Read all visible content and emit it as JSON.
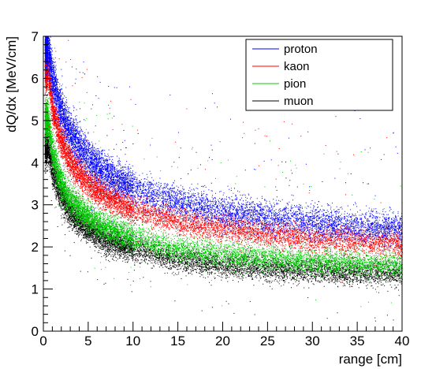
{
  "chart_data": {
    "type": "scatter",
    "title": "",
    "xlabel": "range [cm]",
    "ylabel": "dQ/dx [MeV/cm]",
    "xlim": [
      0,
      40
    ],
    "ylim": [
      0,
      7
    ],
    "x_ticks": [
      0,
      5,
      10,
      15,
      20,
      25,
      30,
      35,
      40
    ],
    "y_ticks": [
      0,
      1,
      2,
      3,
      4,
      5,
      6,
      7
    ],
    "grid": false,
    "legend_position": "top-right",
    "series": [
      {
        "name": "proton",
        "color": "#0000ff",
        "band_center": {
          "x": [
            0.5,
            1,
            2,
            3,
            5,
            7,
            10,
            15,
            20,
            25,
            30,
            35,
            40
          ],
          "y": [
            6.8,
            6.0,
            5.2,
            4.7,
            4.1,
            3.75,
            3.4,
            3.05,
            2.85,
            2.7,
            2.6,
            2.5,
            2.45
          ]
        },
        "band_spread": 0.35
      },
      {
        "name": "kaon",
        "color": "#ff0000",
        "band_center": {
          "x": [
            0.5,
            1,
            2,
            3,
            5,
            7,
            10,
            15,
            20,
            25,
            30,
            35,
            40
          ],
          "y": [
            6.2,
            5.3,
            4.5,
            4.0,
            3.5,
            3.2,
            2.9,
            2.6,
            2.45,
            2.3,
            2.2,
            2.15,
            2.1
          ]
        },
        "band_spread": 0.3
      },
      {
        "name": "pion",
        "color": "#00cc00",
        "band_center": {
          "x": [
            0.5,
            1,
            2,
            3,
            5,
            7,
            10,
            15,
            20,
            25,
            30,
            35,
            40
          ],
          "y": [
            5.0,
            4.2,
            3.5,
            3.1,
            2.7,
            2.45,
            2.2,
            1.95,
            1.8,
            1.72,
            1.65,
            1.6,
            1.55
          ]
        },
        "band_spread": 0.28
      },
      {
        "name": "muon",
        "color": "#000000",
        "band_center": {
          "x": [
            0.5,
            1,
            2,
            3,
            5,
            7,
            10,
            15,
            20,
            25,
            30,
            35,
            40
          ],
          "y": [
            4.4,
            3.8,
            3.2,
            2.8,
            2.4,
            2.15,
            1.95,
            1.7,
            1.55,
            1.48,
            1.42,
            1.38,
            1.35
          ]
        },
        "band_spread": 0.27
      }
    ]
  }
}
